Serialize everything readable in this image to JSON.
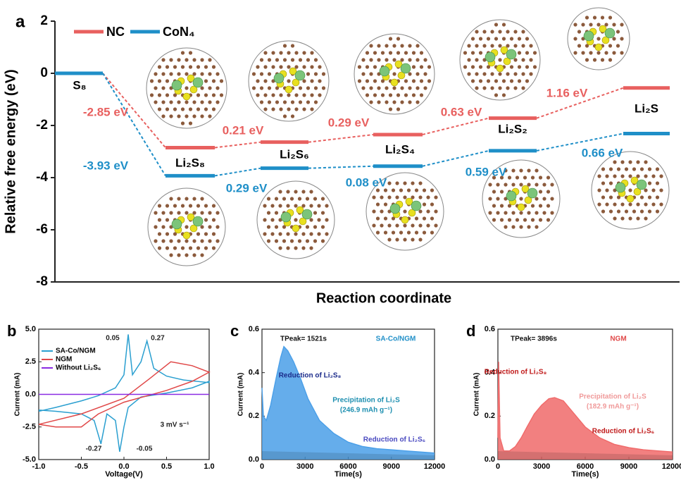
{
  "chart_data": [
    {
      "type": "energy",
      "panel_label": "a",
      "y_label": "Relative free energy (eV)",
      "x_label": "Reaction coordinate",
      "categories": [
        "S₈",
        "Li₂S₈",
        "Li₂S₆",
        "Li₂S₄",
        "Li₂S₂",
        "Li₂S"
      ],
      "series": [
        {
          "name": "NC",
          "color": "#e8605f",
          "values": [
            0,
            -2.85,
            -2.64,
            -2.35,
            -1.72,
            -0.56
          ]
        },
        {
          "name": "CoN₄",
          "color": "#1f8fc8",
          "values": [
            0,
            -3.93,
            -3.64,
            -3.56,
            -2.97,
            -2.31
          ]
        }
      ],
      "ylim": [
        -8,
        2
      ],
      "yticks": [
        -8,
        -6,
        -4,
        -2,
        0,
        2
      ],
      "annotations": [
        {
          "text": "-2.85 eV",
          "color": "#e8605f"
        },
        {
          "text": "0.21 eV",
          "color": "#e8605f"
        },
        {
          "text": "0.29 eV",
          "color": "#e8605f"
        },
        {
          "text": "0.63 eV",
          "color": "#e8605f"
        },
        {
          "text": "1.16 eV",
          "color": "#e8605f"
        },
        {
          "text": "-3.93 eV",
          "color": "#1f8fc8"
        },
        {
          "text": "0.29 eV",
          "color": "#1f8fc8"
        },
        {
          "text": "0.08 eV",
          "color": "#1f8fc8"
        },
        {
          "text": "0.59 eV",
          "color": "#1f8fc8"
        },
        {
          "text": "0.66 eV",
          "color": "#1f8fc8"
        }
      ]
    },
    {
      "type": "line",
      "panel_label": "b",
      "x_label": "Voltage(V)",
      "y_label": "Current (mA)",
      "xlim": [
        -1,
        1
      ],
      "xticks": [
        {
          "value": -1,
          "label": "-1.0"
        },
        -0.5,
        {
          "value": 0,
          "label": "0.0"
        },
        0.5,
        {
          "value": 1,
          "label": "1.0"
        }
      ],
      "ylim": [
        -5,
        5
      ],
      "yticks": [
        {
          "value": -5,
          "label": "-5.0"
        },
        -2.5,
        {
          "value": 0,
          "label": "0.0"
        },
        2.5,
        {
          "value": 5,
          "label": "5.0"
        }
      ],
      "series": [
        {
          "name": "SA-Co/NGM",
          "color": "#2a9fd0",
          "x": [
            -1,
            -0.8,
            -0.5,
            -0.3,
            -0.1,
            0,
            0.05,
            0.1,
            0.2,
            0.27,
            0.35,
            0.5,
            0.7,
            1,
            1,
            0.8,
            0.5,
            0.2,
            0.05,
            0,
            -0.05,
            -0.1,
            -0.2,
            -0.27,
            -0.35,
            -0.5,
            -0.8,
            -1
          ],
          "values": [
            -1.3,
            -1,
            -0.5,
            -0.1,
            0.5,
            1.5,
            4.6,
            1.5,
            2.5,
            4.1,
            2,
            1.4,
            1.1,
            0.9,
            1,
            0.5,
            0.1,
            -0.2,
            -1,
            -2.5,
            -4.4,
            -2,
            -1.5,
            -3.8,
            -2,
            -1.5,
            -1.3,
            -1.2
          ]
        },
        {
          "name": "NGM",
          "color": "#e04848",
          "x": [
            -1,
            -0.5,
            0,
            0.3,
            0.55,
            0.8,
            1,
            0.8,
            0.5,
            0,
            -0.3,
            -0.5,
            -0.8,
            -1
          ],
          "values": [
            -2.3,
            -1.5,
            -0.3,
            1.2,
            2.5,
            2.2,
            1.7,
            1,
            0.3,
            -0.6,
            -1.5,
            -2.5,
            -2.5,
            -2.3
          ]
        },
        {
          "name": "Without Li₂S₆",
          "color": "#8a2be2",
          "x": [
            -1,
            1
          ],
          "values": [
            0,
            0
          ]
        }
      ],
      "annotations": [
        {
          "text": "0.05",
          "color": "#222"
        },
        {
          "text": "0.27",
          "color": "#222"
        },
        {
          "text": "-0.27",
          "color": "#222"
        },
        {
          "text": "-0.05",
          "color": "#222"
        },
        {
          "text": "3 mV s⁻¹",
          "color": "#222"
        }
      ]
    },
    {
      "type": "area",
      "panel_label": "c",
      "x_label": "Time(s)",
      "y_label": "Current (mA)",
      "color": "#4a9fe8",
      "xlim": [
        0,
        12000
      ],
      "xticks": [
        0,
        3000,
        6000,
        9000,
        12000
      ],
      "ylim": [
        0,
        0.6
      ],
      "yticks": [
        {
          "value": 0,
          "label": "0.0"
        },
        0.2,
        0.4,
        0.6
      ],
      "x": [
        0,
        100,
        300,
        600,
        1000,
        1300,
        1521,
        1800,
        2200,
        2700,
        3200,
        4000,
        5000,
        6000,
        7000,
        8000,
        9000,
        10000,
        11000,
        12000
      ],
      "values": [
        0.33,
        0.2,
        0.18,
        0.25,
        0.38,
        0.47,
        0.52,
        0.5,
        0.45,
        0.37,
        0.28,
        0.18,
        0.12,
        0.08,
        0.06,
        0.05,
        0.045,
        0.04,
        0.035,
        0.03
      ],
      "annotations": [
        {
          "text": "TPeak= 1521s",
          "color": "#111"
        },
        {
          "text": "SA-Co/NGM",
          "color": "#1f8fc8"
        },
        {
          "text": "Reduction of Li₂S₈",
          "color": "#1a2a8a"
        },
        {
          "text": "Precipitation of Li₂S",
          "color": "#1d8fb0"
        },
        {
          "text": "(246.9 mAh g⁻¹)",
          "color": "#1d8fb0"
        },
        {
          "text": "Reduction of Li₂S₆",
          "color": "#4a4ac0"
        }
      ]
    },
    {
      "type": "area",
      "panel_label": "d",
      "x_label": "Time(s)",
      "y_label": "Current (mA)",
      "color": "#f06a6a",
      "xlim": [
        0,
        12000
      ],
      "xticks": [
        0,
        3000,
        6000,
        9000,
        12000
      ],
      "ylim": [
        0,
        0.6
      ],
      "yticks": [
        {
          "value": 0,
          "label": "0.0"
        },
        0.2,
        0.4,
        0.6
      ],
      "x": [
        0,
        50,
        150,
        400,
        800,
        1200,
        1600,
        2000,
        2500,
        3000,
        3500,
        3896,
        4500,
        5000,
        6000,
        7000,
        8000,
        9000,
        10000,
        11000,
        12000
      ],
      "values": [
        0.1,
        0.45,
        0.1,
        0.04,
        0.04,
        0.06,
        0.1,
        0.15,
        0.21,
        0.25,
        0.28,
        0.285,
        0.27,
        0.23,
        0.15,
        0.1,
        0.07,
        0.055,
        0.045,
        0.04,
        0.035
      ],
      "annotations": [
        {
          "text": "TPeak= 3896s",
          "color": "#111"
        },
        {
          "text": "NGM",
          "color": "#e04848"
        },
        {
          "text": "Reduction of Li₂S₈",
          "color": "#c01818"
        },
        {
          "text": "Precipitation of Li₂S",
          "color": "#f09a9a"
        },
        {
          "text": "(182.9 mAh g⁻¹)",
          "color": "#f09a9a"
        },
        {
          "text": "Reduction of Li₂S₆",
          "color": "#c01818"
        }
      ]
    }
  ]
}
